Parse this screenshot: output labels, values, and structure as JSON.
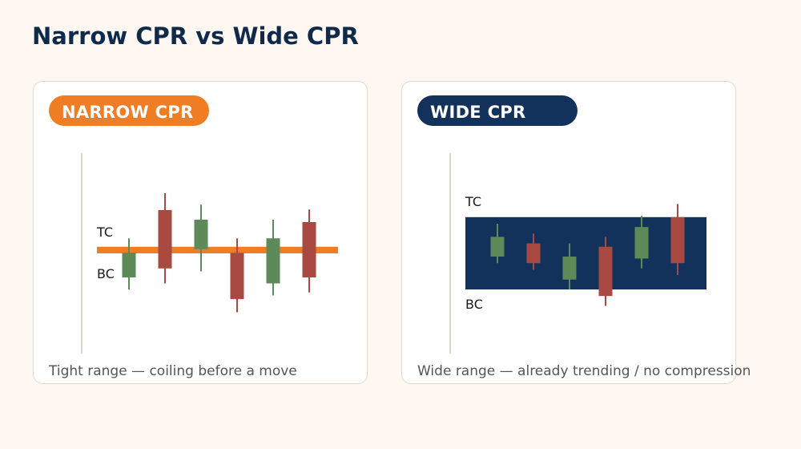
{
  "title": "Narrow CPR vs Wide CPR",
  "colors": {
    "background": "#fff8f2",
    "title": "#0f2a4a",
    "narrow_accent": "#f07c23",
    "wide_accent": "#12325c",
    "bullish": "#5e8a5a",
    "bearish": "#a84a42"
  },
  "panels": [
    {
      "id": "narrow",
      "badge": "NARROW CPR",
      "tc_label": "TC",
      "bc_label": "BC",
      "caption": "Tight range — coiling before a move",
      "band": {
        "tc": 0.11,
        "bc": 0.0
      },
      "candles": [
        {
          "open": -0.4,
          "close": 0.01,
          "high": 0.25,
          "low": -0.6,
          "dir": "up"
        },
        {
          "open": 0.72,
          "close": -0.25,
          "high": 1.0,
          "low": -0.5,
          "dir": "down"
        },
        {
          "open": 0.07,
          "close": 0.56,
          "high": 0.81,
          "low": -0.3,
          "dir": "up"
        },
        {
          "open": 0.01,
          "close": -0.76,
          "high": 0.25,
          "low": -0.98,
          "dir": "down"
        },
        {
          "open": -0.5,
          "close": 0.25,
          "high": 0.56,
          "low": -0.7,
          "dir": "up"
        },
        {
          "open": 0.52,
          "close": -0.4,
          "high": 0.73,
          "low": -0.65,
          "dir": "down"
        }
      ]
    },
    {
      "id": "wide",
      "badge": "WIDE CPR",
      "tc_label": "TC",
      "bc_label": "BC",
      "caption": "Wide range — already trending / no compression",
      "band": {
        "tc": 0.11,
        "bc": 0.0
      },
      "candles": [
        {
          "open": 0.05,
          "close": 0.08,
          "high": 0.1,
          "low": 0.04,
          "dir": "up"
        },
        {
          "open": 0.07,
          "close": 0.04,
          "high": 0.085,
          "low": 0.03,
          "dir": "down"
        },
        {
          "open": 0.015,
          "close": 0.05,
          "high": 0.07,
          "low": 0.0,
          "dir": "up"
        },
        {
          "open": 0.065,
          "close": -0.01,
          "high": 0.08,
          "low": -0.025,
          "dir": "down"
        },
        {
          "open": 0.047,
          "close": 0.095,
          "high": 0.112,
          "low": 0.032,
          "dir": "up"
        },
        {
          "open": 0.11,
          "close": 0.04,
          "high": 0.13,
          "low": 0.022,
          "dir": "down"
        }
      ]
    }
  ]
}
